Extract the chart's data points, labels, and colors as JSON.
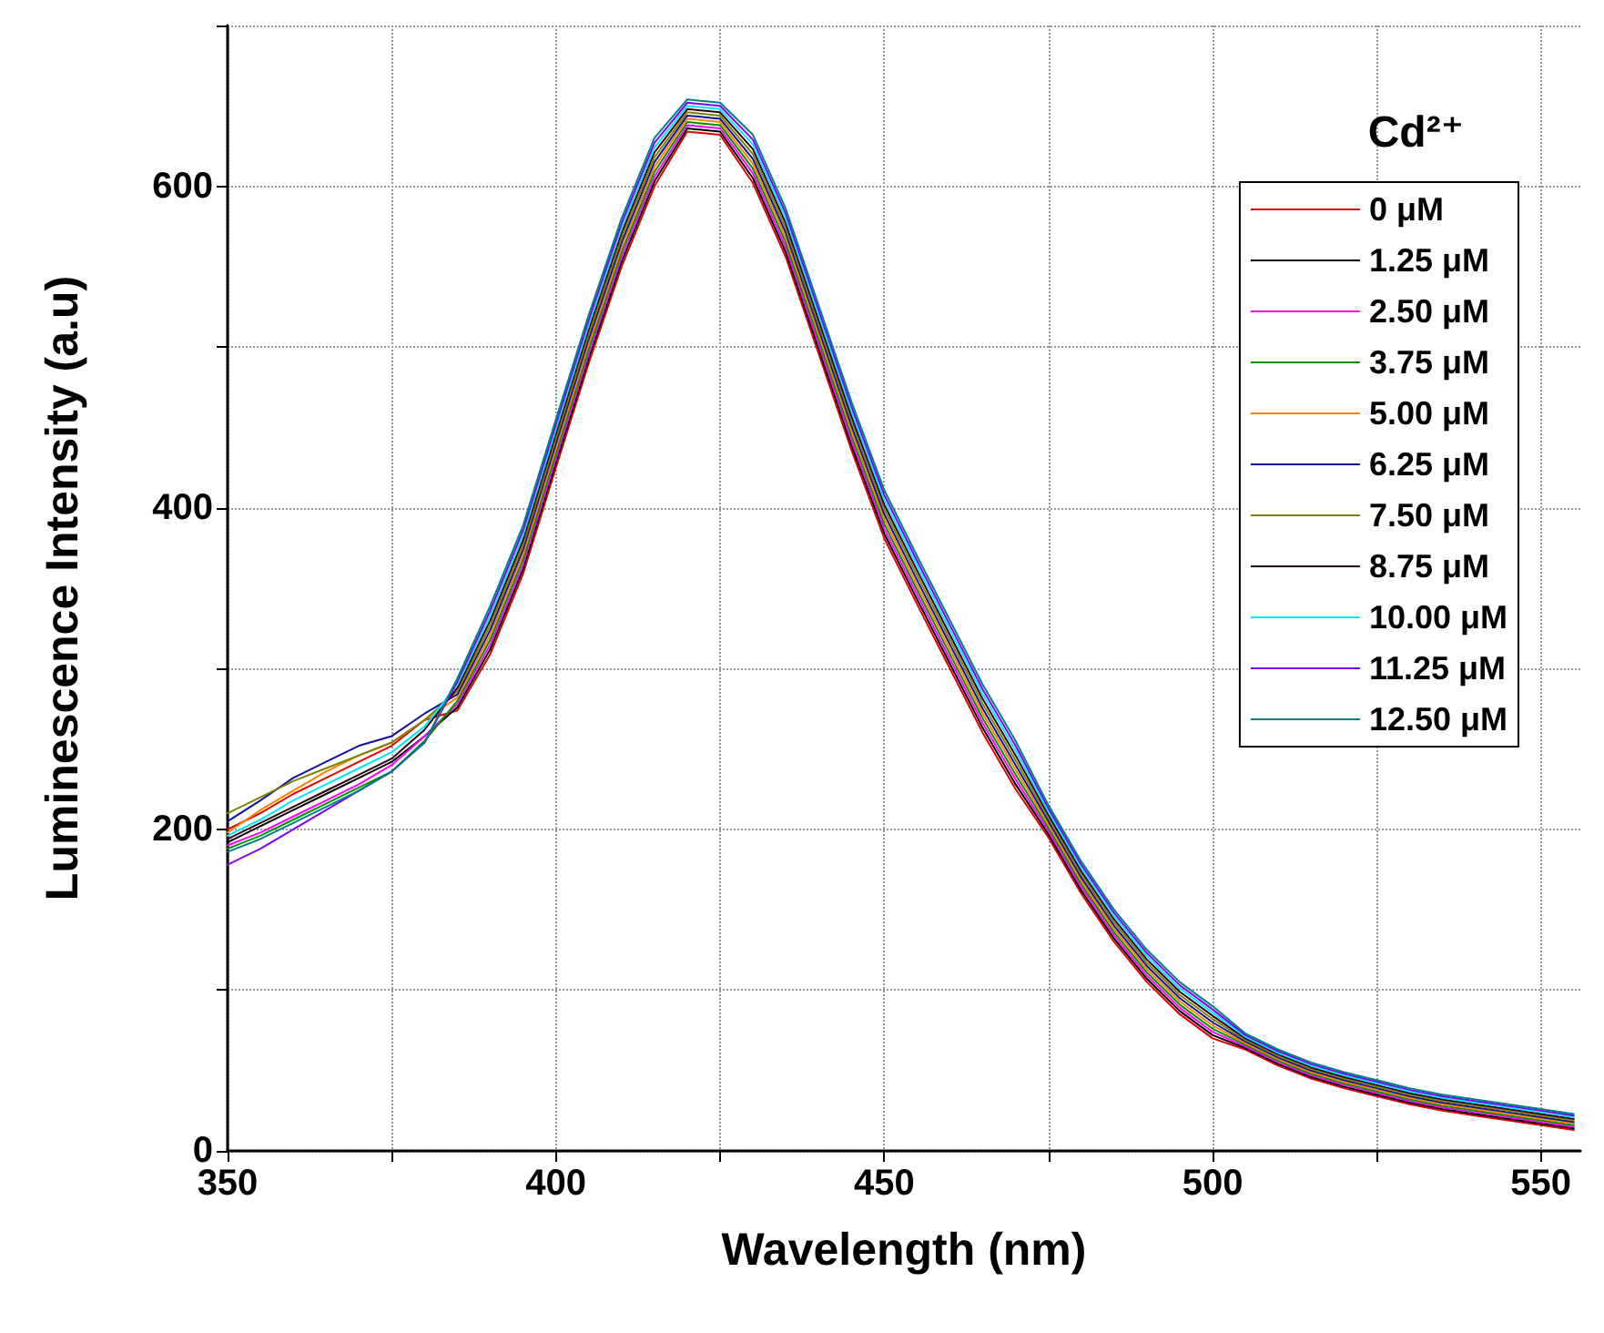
{
  "chart_data": {
    "type": "line",
    "xlabel": "Wavelength (nm)",
    "ylabel": "Luminescence Intensity (a.u)",
    "legend_title": "Cd²⁺",
    "x": [
      350,
      355,
      360,
      365,
      370,
      375,
      380,
      385,
      390,
      395,
      400,
      405,
      410,
      415,
      420,
      425,
      430,
      435,
      440,
      445,
      450,
      455,
      460,
      465,
      470,
      475,
      480,
      485,
      490,
      495,
      500,
      505,
      510,
      515,
      520,
      525,
      530,
      535,
      540,
      545,
      550,
      555
    ],
    "xlim": [
      350,
      556
    ],
    "xticks": [
      350,
      {
        "value": 375,
        "label": null
      },
      400,
      {
        "value": 425,
        "label": null
      },
      450,
      {
        "value": 475,
        "label": null
      },
      500,
      {
        "value": 525,
        "label": null
      },
      550
    ],
    "ylim": [
      0,
      700
    ],
    "yticks": [
      0,
      {
        "value": 100,
        "label": null
      },
      200,
      {
        "value": 300,
        "label": null
      },
      400,
      {
        "value": 500,
        "label": null
      },
      600,
      {
        "value": 700,
        "label": null
      }
    ],
    "grid": true,
    "legend": "top right",
    "marker": "none",
    "line_style": "solid",
    "series": [
      {
        "name": "0 μM",
        "color": "#e00000",
        "values": [
          200,
          210,
          222,
          232,
          242,
          252,
          268,
          274,
          309,
          359,
          425,
          490,
          550,
          600,
          634,
          632,
          602,
          556,
          496,
          436,
          381,
          340,
          300,
          260,
          225,
          195,
          160,
          130,
          105,
          85,
          70,
          63,
          53,
          45,
          39,
          34,
          29,
          25,
          22,
          19,
          16,
          13
        ]
      },
      {
        "name": "1.25 μM",
        "color": "#000000",
        "values": [
          192,
          202,
          212,
          222,
          232,
          242,
          258,
          276,
          312,
          362,
          428,
          493,
          553,
          603,
          636,
          634,
          605,
          559,
          499,
          439,
          384,
          343,
          303,
          263,
          228,
          197,
          162,
          132,
          107,
          87,
          72,
          64,
          54,
          46,
          40,
          35,
          30,
          26,
          23,
          20,
          17,
          14
        ]
      },
      {
        "name": "2.50 μM",
        "color": "#ff00ff",
        "values": [
          190,
          198,
          208,
          218,
          228,
          240,
          258,
          278,
          315,
          365,
          431,
          496,
          556,
          606,
          638,
          636,
          608,
          562,
          502,
          442,
          387,
          346,
          306,
          266,
          231,
          199,
          164,
          134,
          109,
          89,
          74,
          65,
          55,
          47,
          41,
          36,
          31,
          27,
          24,
          21,
          18,
          15
        ]
      },
      {
        "name": "3.75 μM",
        "color": "#009000",
        "values": [
          188,
          196,
          206,
          216,
          226,
          236,
          255,
          280,
          318,
          368,
          434,
          499,
          559,
          609,
          640,
          638,
          611,
          565,
          505,
          445,
          390,
          349,
          309,
          269,
          234,
          201,
          166,
          136,
          111,
          91,
          76,
          66,
          56,
          48,
          42,
          37,
          32,
          28,
          25,
          22,
          19,
          16
        ]
      },
      {
        "name": "5.00 μM",
        "color": "#ff8000",
        "values": [
          198,
          212,
          224,
          236,
          246,
          254,
          268,
          282,
          321,
          371,
          437,
          502,
          562,
          612,
          642,
          640,
          614,
          568,
          508,
          448,
          393,
          352,
          312,
          272,
          237,
          203,
          168,
          138,
          113,
          93,
          78,
          67,
          57,
          49,
          43,
          38,
          33,
          29,
          26,
          23,
          20,
          17
        ]
      },
      {
        "name": "6.25 μM",
        "color": "#1010a0",
        "values": [
          205,
          218,
          232,
          242,
          252,
          258,
          272,
          284,
          324,
          374,
          440,
          505,
          565,
          615,
          644,
          642,
          617,
          571,
          511,
          451,
          396,
          355,
          315,
          275,
          240,
          205,
          170,
          140,
          115,
          95,
          80,
          68,
          58,
          50,
          44,
          39,
          34,
          30,
          27,
          24,
          21,
          18
        ]
      },
      {
        "name": "7.50 μM",
        "color": "#808000",
        "values": [
          210,
          220,
          230,
          238,
          246,
          254,
          268,
          286,
          327,
          377,
          443,
          508,
          568,
          618,
          646,
          644,
          620,
          574,
          514,
          454,
          399,
          358,
          318,
          278,
          243,
          207,
          172,
          142,
          117,
          97,
          82,
          69,
          59,
          51,
          45,
          40,
          35,
          31,
          28,
          25,
          22,
          19
        ]
      },
      {
        "name": "8.75 μM",
        "color": "#300010",
        "values": [
          194,
          204,
          214,
          224,
          234,
          244,
          262,
          288,
          330,
          380,
          446,
          511,
          571,
          621,
          648,
          646,
          623,
          577,
          517,
          457,
          402,
          361,
          321,
          281,
          246,
          209,
          174,
          144,
          119,
          99,
          84,
          70,
          60,
          52,
          46,
          41,
          36,
          32,
          29,
          26,
          23,
          20
        ]
      },
      {
        "name": "10.00 μM",
        "color": "#00e8ff",
        "values": [
          196,
          206,
          218,
          228,
          238,
          248,
          264,
          290,
          333,
          383,
          449,
          514,
          574,
          624,
          650,
          648,
          626,
          580,
          520,
          460,
          405,
          364,
          324,
          284,
          249,
          211,
          176,
          146,
          121,
          101,
          86,
          71,
          61,
          53,
          47,
          42,
          37,
          33,
          30,
          27,
          24,
          21
        ]
      },
      {
        "name": "11.25 μM",
        "color": "#8000ff",
        "values": [
          178,
          188,
          200,
          212,
          224,
          236,
          254,
          292,
          336,
          386,
          452,
          517,
          577,
          627,
          652,
          650,
          629,
          583,
          523,
          463,
          408,
          367,
          327,
          287,
          252,
          213,
          178,
          148,
          123,
          103,
          88,
          72,
          62,
          54,
          48,
          43,
          38,
          34,
          31,
          28,
          25,
          22
        ]
      },
      {
        "name": "12.50 μM",
        "color": "#008080",
        "values": [
          186,
          194,
          204,
          214,
          224,
          236,
          254,
          294,
          339,
          389,
          455,
          520,
          580,
          630,
          654,
          652,
          632,
          586,
          526,
          466,
          411,
          370,
          330,
          290,
          255,
          215,
          180,
          150,
          125,
          105,
          90,
          73,
          63,
          55,
          49,
          44,
          39,
          35,
          32,
          29,
          26,
          23
        ]
      }
    ]
  }
}
